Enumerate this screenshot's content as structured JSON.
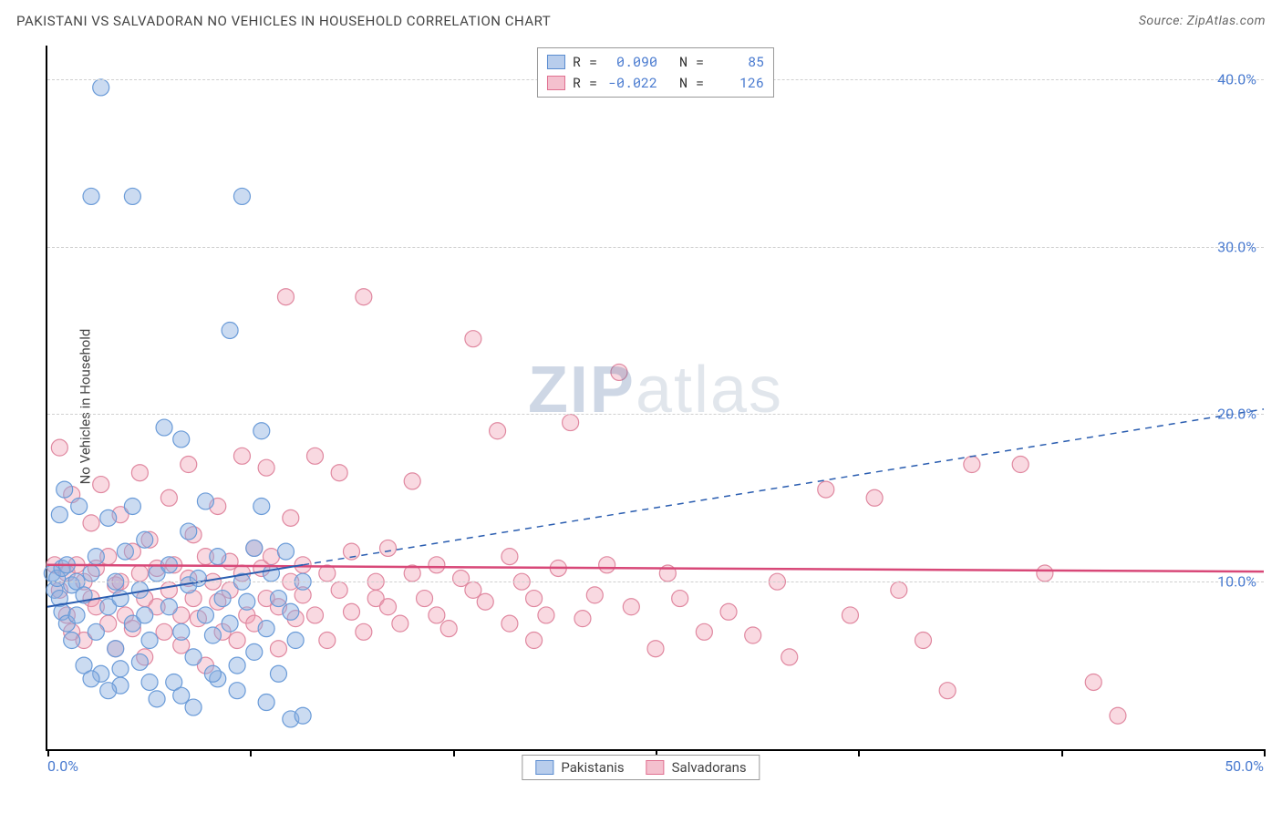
{
  "title": "PAKISTANI VS SALVADORAN NO VEHICLES IN HOUSEHOLD CORRELATION CHART",
  "source": "Source: ZipAtlas.com",
  "ylabel": "No Vehicles in Household",
  "watermark": "ZIPatlas",
  "chart": {
    "type": "scatter",
    "background_color": "#ffffff",
    "grid_color": "#d0d0d0",
    "axis_color": "#000000",
    "tick_label_color": "#4a7bd0",
    "xlim": [
      0,
      50
    ],
    "ylim": [
      0,
      42
    ],
    "y_ticks": [
      10,
      20,
      30,
      40
    ],
    "y_tick_labels": [
      "10.0%",
      "20.0%",
      "30.0%",
      "40.0%"
    ],
    "x_ticks_visual": [
      0,
      8.33,
      16.67,
      25,
      33.33,
      41.67,
      50
    ],
    "x_tick_labels": {
      "left": "0.0%",
      "right": "50.0%"
    },
    "marker_radius": 9,
    "marker_stroke_width": 1.2,
    "series": [
      {
        "name": "Pakistanis",
        "fill": "rgba(140,175,225,0.45)",
        "stroke": "#6a9bd8",
        "swatch_fill": "#b8cdec",
        "swatch_stroke": "#5a8cd0",
        "R": "0.090",
        "N": "85",
        "regression": {
          "x1": 0,
          "y1": 8.5,
          "x2": 10.5,
          "y2": 11.0,
          "solid_until_x": 10.5,
          "dash_to_x": 50,
          "dash_to_y": 20.3,
          "color": "#2a5db0",
          "width": 2
        },
        "points": [
          [
            0.2,
            10.5
          ],
          [
            0.3,
            9.5
          ],
          [
            0.4,
            10.2
          ],
          [
            0.5,
            9.0
          ],
          [
            0.5,
            14.0
          ],
          [
            0.6,
            8.2
          ],
          [
            0.6,
            10.8
          ],
          [
            0.7,
            15.5
          ],
          [
            0.8,
            7.5
          ],
          [
            0.8,
            11.0
          ],
          [
            1.0,
            9.8
          ],
          [
            1.0,
            6.5
          ],
          [
            1.2,
            10.0
          ],
          [
            1.2,
            8.0
          ],
          [
            1.3,
            14.5
          ],
          [
            1.5,
            9.2
          ],
          [
            1.5,
            5.0
          ],
          [
            1.8,
            10.5
          ],
          [
            1.8,
            33.0
          ],
          [
            2.0,
            7.0
          ],
          [
            2.0,
            11.5
          ],
          [
            2.2,
            39.5
          ],
          [
            2.2,
            4.5
          ],
          [
            2.5,
            8.5
          ],
          [
            2.5,
            13.8
          ],
          [
            2.8,
            6.0
          ],
          [
            2.8,
            10.0
          ],
          [
            3.0,
            9.0
          ],
          [
            3.0,
            3.8
          ],
          [
            3.2,
            11.8
          ],
          [
            3.5,
            7.5
          ],
          [
            3.5,
            14.5
          ],
          [
            3.8,
            5.2
          ],
          [
            3.8,
            9.5
          ],
          [
            4.0,
            8.0
          ],
          [
            4.0,
            12.5
          ],
          [
            3.5,
            33.0
          ],
          [
            4.2,
            6.5
          ],
          [
            4.5,
            10.5
          ],
          [
            4.5,
            3.0
          ],
          [
            4.8,
            19.2
          ],
          [
            5.0,
            8.5
          ],
          [
            5.0,
            11.0
          ],
          [
            5.2,
            4.0
          ],
          [
            5.5,
            18.5
          ],
          [
            5.5,
            7.0
          ],
          [
            5.8,
            9.8
          ],
          [
            5.8,
            13.0
          ],
          [
            6.0,
            5.5
          ],
          [
            6.0,
            2.5
          ],
          [
            6.2,
            10.2
          ],
          [
            6.5,
            8.0
          ],
          [
            6.5,
            14.8
          ],
          [
            6.8,
            6.8
          ],
          [
            7.0,
            11.5
          ],
          [
            7.0,
            4.2
          ],
          [
            7.2,
            9.0
          ],
          [
            7.5,
            25.0
          ],
          [
            7.5,
            7.5
          ],
          [
            7.8,
            3.5
          ],
          [
            8.0,
            10.0
          ],
          [
            8.0,
            33.0
          ],
          [
            8.2,
            8.8
          ],
          [
            8.5,
            5.8
          ],
          [
            8.5,
            12.0
          ],
          [
            8.8,
            19.0
          ],
          [
            9.0,
            7.2
          ],
          [
            9.0,
            2.8
          ],
          [
            9.2,
            10.5
          ],
          [
            9.5,
            9.0
          ],
          [
            9.5,
            4.5
          ],
          [
            9.8,
            11.8
          ],
          [
            10.0,
            8.2
          ],
          [
            10.0,
            1.8
          ],
          [
            10.2,
            6.5
          ],
          [
            10.5,
            10.0
          ],
          [
            10.5,
            2.0
          ],
          [
            3.0,
            4.8
          ],
          [
            4.2,
            4.0
          ],
          [
            5.5,
            3.2
          ],
          [
            6.8,
            4.5
          ],
          [
            7.8,
            5.0
          ],
          [
            2.5,
            3.5
          ],
          [
            1.8,
            4.2
          ],
          [
            8.8,
            14.5
          ]
        ]
      },
      {
        "name": "Salvadorans",
        "fill": "rgba(240,160,180,0.40)",
        "stroke": "#e088a0",
        "swatch_fill": "#f4c0ce",
        "swatch_stroke": "#e07090",
        "R": "-0.022",
        "N": "126",
        "regression": {
          "x1": 0,
          "y1": 11.0,
          "x2": 50,
          "y2": 10.6,
          "color": "#d84878",
          "width": 2.5
        },
        "points": [
          [
            0.3,
            11.0
          ],
          [
            0.5,
            9.5
          ],
          [
            0.5,
            18.0
          ],
          [
            0.8,
            10.5
          ],
          [
            0.8,
            8.0
          ],
          [
            1.0,
            15.2
          ],
          [
            1.0,
            7.0
          ],
          [
            1.2,
            11.0
          ],
          [
            1.5,
            10.0
          ],
          [
            1.5,
            6.5
          ],
          [
            1.8,
            9.0
          ],
          [
            1.8,
            13.5
          ],
          [
            2.0,
            10.8
          ],
          [
            2.0,
            8.5
          ],
          [
            2.2,
            15.8
          ],
          [
            2.5,
            7.5
          ],
          [
            2.5,
            11.5
          ],
          [
            2.8,
            9.8
          ],
          [
            2.8,
            6.0
          ],
          [
            3.0,
            14.0
          ],
          [
            3.0,
            10.0
          ],
          [
            3.2,
            8.0
          ],
          [
            3.5,
            11.8
          ],
          [
            3.5,
            7.2
          ],
          [
            3.8,
            10.5
          ],
          [
            3.8,
            16.5
          ],
          [
            4.0,
            9.0
          ],
          [
            4.0,
            5.5
          ],
          [
            4.2,
            12.5
          ],
          [
            4.5,
            8.5
          ],
          [
            4.5,
            10.8
          ],
          [
            4.8,
            7.0
          ],
          [
            5.0,
            15.0
          ],
          [
            5.0,
            9.5
          ],
          [
            5.2,
            11.0
          ],
          [
            5.5,
            8.0
          ],
          [
            5.5,
            6.2
          ],
          [
            5.8,
            10.2
          ],
          [
            5.8,
            17.0
          ],
          [
            6.0,
            9.0
          ],
          [
            6.0,
            12.8
          ],
          [
            6.2,
            7.8
          ],
          [
            6.5,
            11.5
          ],
          [
            6.5,
            5.0
          ],
          [
            6.8,
            10.0
          ],
          [
            7.0,
            8.8
          ],
          [
            7.0,
            14.5
          ],
          [
            7.2,
            7.0
          ],
          [
            7.5,
            11.2
          ],
          [
            7.5,
            9.5
          ],
          [
            7.8,
            6.5
          ],
          [
            8.0,
            17.5
          ],
          [
            8.0,
            10.5
          ],
          [
            8.2,
            8.0
          ],
          [
            8.5,
            12.0
          ],
          [
            8.5,
            7.5
          ],
          [
            8.8,
            10.8
          ],
          [
            9.0,
            9.0
          ],
          [
            9.0,
            16.8
          ],
          [
            9.2,
            11.5
          ],
          [
            9.5,
            8.5
          ],
          [
            9.5,
            6.0
          ],
          [
            9.8,
            27.0
          ],
          [
            10.0,
            10.0
          ],
          [
            10.0,
            13.8
          ],
          [
            10.2,
            7.8
          ],
          [
            10.5,
            11.0
          ],
          [
            10.5,
            9.2
          ],
          [
            11.0,
            17.5
          ],
          [
            11.0,
            8.0
          ],
          [
            11.5,
            10.5
          ],
          [
            11.5,
            6.5
          ],
          [
            12.0,
            9.5
          ],
          [
            12.0,
            16.5
          ],
          [
            12.5,
            8.2
          ],
          [
            12.5,
            11.8
          ],
          [
            13.0,
            27.0
          ],
          [
            13.0,
            7.0
          ],
          [
            13.5,
            10.0
          ],
          [
            13.5,
            9.0
          ],
          [
            14.0,
            8.5
          ],
          [
            14.0,
            12.0
          ],
          [
            14.5,
            7.5
          ],
          [
            15.0,
            10.5
          ],
          [
            15.0,
            16.0
          ],
          [
            15.5,
            9.0
          ],
          [
            16.0,
            8.0
          ],
          [
            16.0,
            11.0
          ],
          [
            16.5,
            7.2
          ],
          [
            17.0,
            10.2
          ],
          [
            17.5,
            24.5
          ],
          [
            17.5,
            9.5
          ],
          [
            18.0,
            8.8
          ],
          [
            18.5,
            19.0
          ],
          [
            19.0,
            7.5
          ],
          [
            19.0,
            11.5
          ],
          [
            19.5,
            10.0
          ],
          [
            20.0,
            9.0
          ],
          [
            20.0,
            6.5
          ],
          [
            20.5,
            8.0
          ],
          [
            21.0,
            10.8
          ],
          [
            21.5,
            19.5
          ],
          [
            22.0,
            7.8
          ],
          [
            22.5,
            9.2
          ],
          [
            23.0,
            11.0
          ],
          [
            23.5,
            22.5
          ],
          [
            24.0,
            8.5
          ],
          [
            25.0,
            6.0
          ],
          [
            25.5,
            10.5
          ],
          [
            26.0,
            9.0
          ],
          [
            27.0,
            7.0
          ],
          [
            28.0,
            8.2
          ],
          [
            29.0,
            6.8
          ],
          [
            30.0,
            10.0
          ],
          [
            30.5,
            5.5
          ],
          [
            32.0,
            15.5
          ],
          [
            33.0,
            8.0
          ],
          [
            34.0,
            15.0
          ],
          [
            35.0,
            9.5
          ],
          [
            36.0,
            6.5
          ],
          [
            37.0,
            3.5
          ],
          [
            38.0,
            17.0
          ],
          [
            40.0,
            17.0
          ],
          [
            41.0,
            10.5
          ],
          [
            43.0,
            4.0
          ],
          [
            44.0,
            2.0
          ]
        ]
      }
    ]
  },
  "stats_labels": {
    "R": "R =",
    "N": "N ="
  },
  "legend": {
    "series1": "Pakistanis",
    "series2": "Salvadorans"
  }
}
